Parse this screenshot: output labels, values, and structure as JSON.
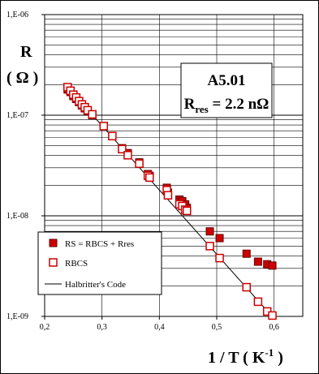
{
  "chart_data": {
    "type": "scatter",
    "title": "",
    "xlabel": "1 / T ( K⁻¹ )",
    "xlabel_parts": {
      "main": "1 / T (  K",
      "sup": "-1",
      "close": " )"
    },
    "ylabel_line1": "R",
    "ylabel_line2": "( Ω )",
    "xlim": [
      0.2,
      0.65
    ],
    "ylim": [
      1e-09,
      1e-06
    ],
    "yscale": "log",
    "grid": true,
    "x_ticks": [
      0.2,
      0.3,
      0.4,
      0.5,
      0.6
    ],
    "x_tick_labels": [
      "0,2",
      "0,3",
      "0,4",
      "0,5",
      "0,6"
    ],
    "y_ticks": [
      1e-09,
      1e-08,
      1e-07,
      1e-06
    ],
    "y_tick_labels": [
      "1,E-09",
      "1,E-08",
      "1,E-07",
      "1,E-06"
    ],
    "annotation": {
      "line1": "A5.01",
      "line2_main": "R",
      "line2_sub": "res",
      "line2_rest": " = 2.2 nΩ"
    },
    "legend": {
      "placement": "lower-left",
      "entries": [
        "RS = RBCS + Rres",
        "RBCS",
        "Halbritter's Code"
      ]
    },
    "series": [
      {
        "name": "RS = RBCS + Rres",
        "marker": "filled-square",
        "color": "#cc0000",
        "points": [
          [
            0.24,
            1.8e-07
          ],
          [
            0.245,
            1.7e-07
          ],
          [
            0.25,
            1.55e-07
          ],
          [
            0.255,
            1.45e-07
          ],
          [
            0.26,
            1.35e-07
          ],
          [
            0.265,
            1.25e-07
          ],
          [
            0.27,
            1.17e-07
          ],
          [
            0.275,
            1.1e-07
          ],
          [
            0.283,
            1e-07
          ],
          [
            0.303,
            7.8e-08
          ],
          [
            0.318,
            6.2e-08
          ],
          [
            0.335,
            4.7e-08
          ],
          [
            0.345,
            4.2e-08
          ],
          [
            0.365,
            3.4e-08
          ],
          [
            0.38,
            2.6e-08
          ],
          [
            0.383,
            2.5e-08
          ],
          [
            0.413,
            1.9e-08
          ],
          [
            0.415,
            1.7e-08
          ],
          [
            0.435,
            1.45e-08
          ],
          [
            0.44,
            1.4e-08
          ],
          [
            0.445,
            1.3e-08
          ],
          [
            0.448,
            1.2e-08
          ],
          [
            0.488,
            7e-09
          ],
          [
            0.505,
            6e-09
          ],
          [
            0.552,
            4.2e-09
          ],
          [
            0.572,
            3.5e-09
          ],
          [
            0.588,
            3.3e-09
          ],
          [
            0.597,
            3.2e-09
          ]
        ]
      },
      {
        "name": "RBCS",
        "marker": "open-square",
        "color": "#cc0000",
        "points": [
          [
            0.24,
            1.9e-07
          ],
          [
            0.245,
            1.75e-07
          ],
          [
            0.25,
            1.6e-07
          ],
          [
            0.255,
            1.5e-07
          ],
          [
            0.26,
            1.38e-07
          ],
          [
            0.265,
            1.28e-07
          ],
          [
            0.27,
            1.2e-07
          ],
          [
            0.275,
            1.12e-07
          ],
          [
            0.283,
            1.02e-07
          ],
          [
            0.303,
            7.8e-08
          ],
          [
            0.318,
            6.2e-08
          ],
          [
            0.335,
            4.6e-08
          ],
          [
            0.345,
            4e-08
          ],
          [
            0.365,
            3.3e-08
          ],
          [
            0.38,
            2.5e-08
          ],
          [
            0.383,
            2.4e-08
          ],
          [
            0.413,
            1.8e-08
          ],
          [
            0.415,
            1.6e-08
          ],
          [
            0.435,
            1.3e-08
          ],
          [
            0.44,
            1.25e-08
          ],
          [
            0.445,
            1.15e-08
          ],
          [
            0.448,
            1.12e-08
          ],
          [
            0.488,
            5e-09
          ],
          [
            0.505,
            3.8e-09
          ],
          [
            0.552,
            1.95e-09
          ],
          [
            0.572,
            1.4e-09
          ],
          [
            0.588,
            1.12e-09
          ],
          [
            0.597,
            1.02e-09
          ]
        ]
      },
      {
        "name": "Halbritter's Code",
        "marker": "line",
        "color": "#000000",
        "points": [
          [
            0.235,
            2.05e-07
          ],
          [
            0.6,
            9.5e-10
          ]
        ]
      }
    ]
  }
}
